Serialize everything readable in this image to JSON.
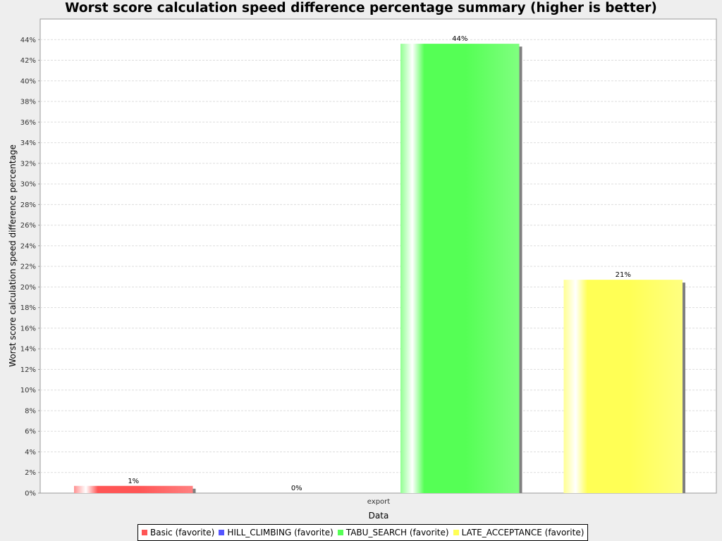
{
  "chart_data": {
    "type": "bar",
    "title": "Worst score calculation speed difference percentage summary (higher is better)",
    "xlabel": "Data",
    "ylabel": "Worst score calculation speed difference percentage",
    "categories": [
      "export"
    ],
    "ylim": [
      0,
      46
    ],
    "y_ticks": [
      "0%",
      "2%",
      "4%",
      "6%",
      "8%",
      "10%",
      "12%",
      "14%",
      "16%",
      "18%",
      "20%",
      "22%",
      "24%",
      "26%",
      "28%",
      "30%",
      "32%",
      "34%",
      "36%",
      "38%",
      "40%",
      "42%",
      "44%"
    ],
    "grid": true,
    "legend_position": "bottom",
    "series": [
      {
        "name": "Basic (favorite)",
        "color": "#ff5555",
        "values": [
          0.7
        ],
        "label": "1%"
      },
      {
        "name": "HILL_CLIMBING (favorite)",
        "color": "#5555ff",
        "values": [
          0
        ],
        "label": "0%"
      },
      {
        "name": "TABU_SEARCH (favorite)",
        "color": "#55ff55",
        "values": [
          43.6
        ],
        "label": "44%"
      },
      {
        "name": "LATE_ACCEPTANCE (favorite)",
        "color": "#ffff55",
        "values": [
          20.7
        ],
        "label": "21%"
      }
    ]
  }
}
